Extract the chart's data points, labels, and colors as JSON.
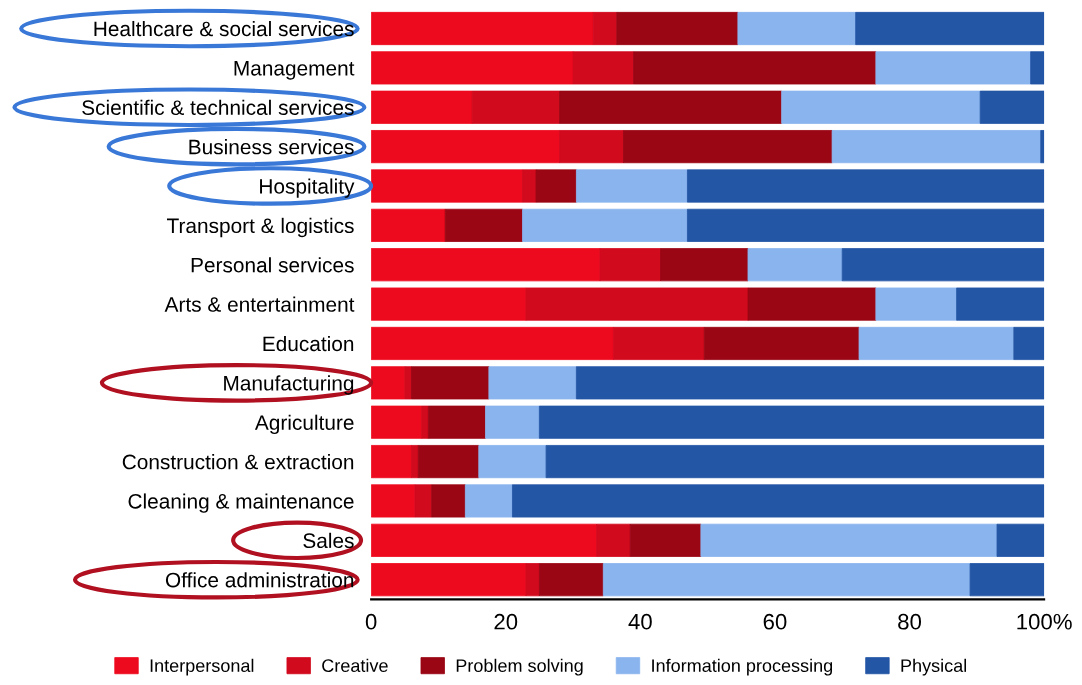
{
  "chart_data": {
    "type": "bar",
    "orientation": "horizontal",
    "stacked": true,
    "categories": [
      "Healthcare & social services",
      "Management",
      "Scientific & technical services",
      "Business services",
      "Hospitality",
      "Transport & logistics",
      "Personal services",
      "Arts & entertainment",
      "Education",
      "Manufacturing",
      "Agriculture",
      "Construction & extraction",
      "Cleaning & maintenance",
      "Sales",
      "Office administration"
    ],
    "series": [
      {
        "name": "Interpersonal",
        "color": "#ee0a1e",
        "values": [
          33,
          30,
          15,
          28,
          22.5,
          11,
          34,
          23,
          36,
          5,
          7.5,
          6,
          6.5,
          33.5,
          23
        ]
      },
      {
        "name": "Creative",
        "color": "#d20a1e",
        "values": [
          3.5,
          9,
          13,
          9.5,
          2,
          0,
          9,
          33,
          13.5,
          1,
          1,
          1,
          2.5,
          5,
          2
        ]
      },
      {
        "name": "Problem solving",
        "color": "#9a0614",
        "values": [
          18,
          36,
          33,
          31,
          6,
          11.5,
          13,
          19,
          23,
          11.5,
          8.5,
          9,
          5,
          10.5,
          9.5
        ]
      },
      {
        "name": "Information processing",
        "color": "#8ab4ee",
        "values": [
          17.5,
          23,
          29.5,
          31,
          16.5,
          24.5,
          14,
          12,
          23,
          13,
          8,
          10,
          7,
          44,
          54.5
        ]
      },
      {
        "name": "Physical",
        "color": "#2356a5",
        "values": [
          28,
          2,
          9.5,
          0.5,
          53,
          53,
          30,
          13,
          4.5,
          69.5,
          75,
          74,
          79,
          7,
          11
        ]
      }
    ],
    "xlim": [
      0,
      100
    ],
    "xticks": [
      0,
      20,
      40,
      60,
      80,
      {
        "value": 100,
        "label": "100%"
      }
    ],
    "grid": false,
    "legend": "bottom"
  }
}
